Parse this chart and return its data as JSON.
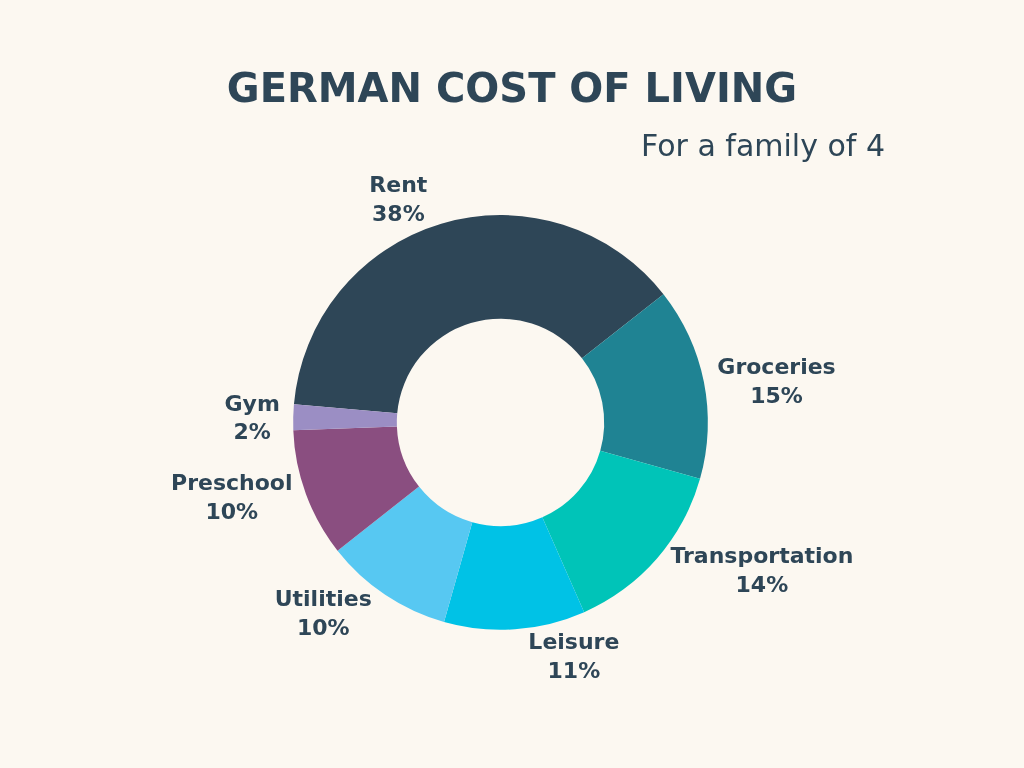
{
  "chart_data": {
    "type": "donut",
    "title": "GERMAN COST OF LIVING",
    "subtitle": "For a family of 4",
    "categories": [
      "Rent",
      "Groceries",
      "Transportation",
      "Leisure",
      "Utilities",
      "Preschool",
      "Gym"
    ],
    "values": [
      38,
      15,
      14,
      11,
      10,
      10,
      2
    ],
    "colors": [
      "#2e4657",
      "#1f8393",
      "#00c4b8",
      "#00c2e6",
      "#57c8f2",
      "#8a4e80",
      "#9b8ec4"
    ],
    "value_labels": [
      "38%",
      "15%",
      "14%",
      "11%",
      "10%",
      "10%",
      "2%"
    ],
    "legend": false
  }
}
